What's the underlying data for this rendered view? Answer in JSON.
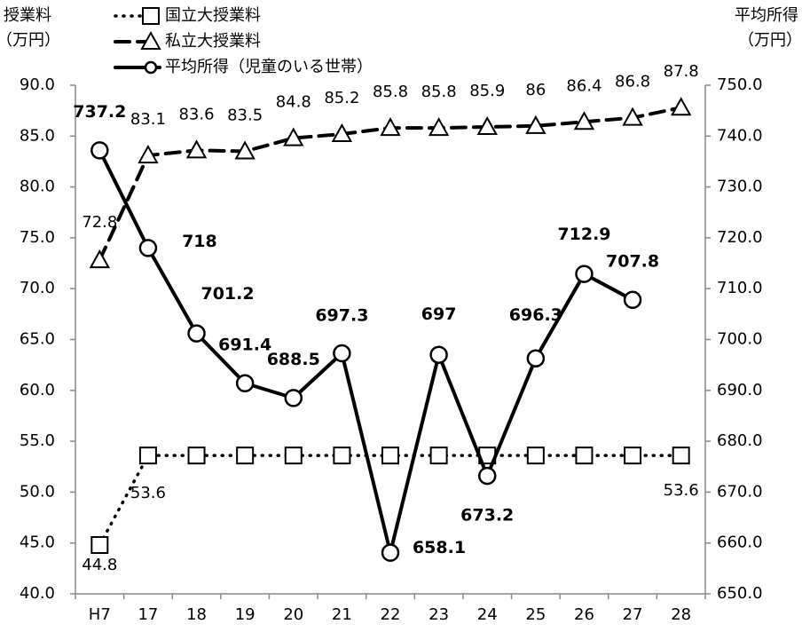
{
  "chart_data": {
    "type": "line",
    "ylabel": [
      "授業料",
      "（万円）"
    ],
    "y2label": [
      "平均所得",
      "（万円）"
    ],
    "categories": [
      "H7",
      "17",
      "18",
      "19",
      "20",
      "21",
      "22",
      "23",
      "24",
      "25",
      "26",
      "27",
      "28"
    ],
    "ylim": [
      40,
      90
    ],
    "yticks": [
      {
        "value": 40,
        "label": "40.0"
      },
      {
        "value": 45,
        "label": "45.0"
      },
      {
        "value": 50,
        "label": "50.0"
      },
      {
        "value": 55,
        "label": "55.0"
      },
      {
        "value": 60,
        "label": "60.0"
      },
      {
        "value": 65,
        "label": "65.0"
      },
      {
        "value": 70,
        "label": "70.0"
      },
      {
        "value": 75,
        "label": "75.0"
      },
      {
        "value": 80,
        "label": "80.0"
      },
      {
        "value": 85,
        "label": "85.0"
      },
      {
        "value": 90,
        "label": "90.0"
      }
    ],
    "y2lim": [
      650,
      750
    ],
    "y2ticks": [
      {
        "value": 650,
        "label": "650.0"
      },
      {
        "value": 660,
        "label": "660.0"
      },
      {
        "value": 670,
        "label": "670.0"
      },
      {
        "value": 680,
        "label": "680.0"
      },
      {
        "value": 690,
        "label": "690.0"
      },
      {
        "value": 700,
        "label": "700.0"
      },
      {
        "value": 710,
        "label": "710.0"
      },
      {
        "value": 720,
        "label": "720.0"
      },
      {
        "value": 730,
        "label": "730.0"
      },
      {
        "value": 740,
        "label": "740.0"
      },
      {
        "value": 750,
        "label": "750.0"
      }
    ],
    "series": [
      {
        "name": "国立大授業料",
        "color": "#000000",
        "style": "dotted",
        "marker": "square",
        "values": [
          44.8,
          53.6,
          53.6,
          53.6,
          53.6,
          53.6,
          53.6,
          53.6,
          53.6,
          53.6,
          53.6,
          53.6,
          53.6
        ],
        "value_labels": [
          "44.8",
          "53.6",
          null,
          null,
          null,
          null,
          null,
          null,
          null,
          null,
          null,
          null,
          "53.6"
        ]
      },
      {
        "name": "私立大授業料",
        "color": "#000000",
        "style": "dashed",
        "marker": "triangle",
        "values": [
          72.8,
          83.1,
          83.6,
          83.5,
          84.8,
          85.2,
          85.8,
          85.8,
          85.9,
          86.0,
          86.4,
          86.8,
          87.8
        ]
      },
      {
        "name": "平均所得（児童のいる世帯）",
        "color": "#000000",
        "style": "solid",
        "marker": "circle",
        "axis": "y2",
        "values": [
          737.2,
          718.0,
          701.2,
          691.4,
          688.5,
          697.3,
          658.1,
          697.0,
          673.2,
          696.3,
          712.9,
          707.8,
          null
        ]
      }
    ]
  }
}
